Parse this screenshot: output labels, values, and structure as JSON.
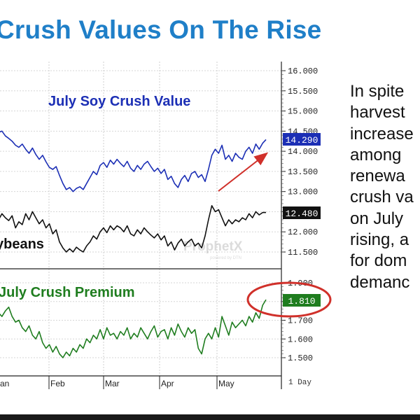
{
  "slide": {
    "title": "Crush Values On The Rise",
    "body_lines": [
      "In spite",
      "harvest",
      "increase",
      "among",
      "renewa",
      "crush va",
      "on July",
      "rising, a",
      "for dom",
      "demanc"
    ]
  },
  "chart_data": [
    {
      "type": "line",
      "panel": "upper",
      "title": "July Soy Crush Value",
      "x_ticks": [
        "an",
        "Feb",
        "Mar",
        "Apr",
        "May"
      ],
      "y_ticks": [
        "16.000",
        "15.500",
        "15.000",
        "14.500",
        "14.000",
        "13.500",
        "13.000",
        "12.500",
        "12.000",
        "11.500"
      ],
      "ylim": [
        11.3,
        16.1
      ],
      "series": [
        {
          "name": "July Soy Crush Value",
          "color": "#1c2fb5",
          "last_value": "14.290",
          "values": [
            14.47,
            14.5,
            14.38,
            14.32,
            14.25,
            14.15,
            14.1,
            14.18,
            14.05,
            13.95,
            14.08,
            13.92,
            13.8,
            13.9,
            13.74,
            13.6,
            13.55,
            13.62,
            13.4,
            13.2,
            13.05,
            13.1,
            13.0,
            13.08,
            13.12,
            13.05,
            13.2,
            13.35,
            13.5,
            13.42,
            13.65,
            13.72,
            13.6,
            13.78,
            13.68,
            13.8,
            13.7,
            13.62,
            13.75,
            13.58,
            13.5,
            13.65,
            13.55,
            13.68,
            13.75,
            13.62,
            13.5,
            13.58,
            13.45,
            13.55,
            13.3,
            13.38,
            13.2,
            13.1,
            13.3,
            13.4,
            13.25,
            13.45,
            13.5,
            13.35,
            13.42,
            13.25,
            13.55,
            13.9,
            14.05,
            13.95,
            14.15,
            13.8,
            13.9,
            13.75,
            13.95,
            13.85,
            13.8,
            14.0,
            14.1,
            13.95,
            14.18,
            14.05,
            14.2,
            14.29
          ]
        },
        {
          "name": "Soybeans",
          "label_shown": "ybeans",
          "color": "#111111",
          "last_value": "12.480",
          "values": [
            12.3,
            12.45,
            12.35,
            12.28,
            12.4,
            12.1,
            12.25,
            12.18,
            12.45,
            12.3,
            12.5,
            12.35,
            12.2,
            12.3,
            12.1,
            12.2,
            11.95,
            12.05,
            11.75,
            11.6,
            11.5,
            11.58,
            11.5,
            11.62,
            11.55,
            11.5,
            11.65,
            11.75,
            11.9,
            11.82,
            12.0,
            12.1,
            11.98,
            12.15,
            12.05,
            12.15,
            12.1,
            12.0,
            12.15,
            11.95,
            11.9,
            12.05,
            11.95,
            12.1,
            12.0,
            11.92,
            11.85,
            11.95,
            11.8,
            11.9,
            11.65,
            11.75,
            11.55,
            11.72,
            11.82,
            11.65,
            11.75,
            11.82,
            11.65,
            11.72,
            11.6,
            11.9,
            12.3,
            12.65,
            12.5,
            12.55,
            12.35,
            12.15,
            12.3,
            12.2,
            12.3,
            12.25,
            12.35,
            12.3,
            12.45,
            12.35,
            12.5,
            12.42,
            12.48,
            12.48
          ]
        }
      ],
      "annotations": [
        "trend arrow (red)"
      ]
    },
    {
      "type": "line",
      "panel": "lower",
      "title": "July Crush Premium",
      "x_ticks": [
        "an",
        "Feb",
        "Mar",
        "Apr",
        "May"
      ],
      "y_ticks": [
        "1.900",
        "1.800",
        "1.700",
        "1.600",
        "1.500"
      ],
      "ylim": [
        1.43,
        1.93
      ],
      "series": [
        {
          "name": "July Crush Premium",
          "color": "#1f7d1f",
          "last_value": "1.810",
          "values": [
            1.74,
            1.72,
            1.75,
            1.77,
            1.72,
            1.69,
            1.7,
            1.66,
            1.64,
            1.67,
            1.62,
            1.6,
            1.64,
            1.58,
            1.55,
            1.57,
            1.53,
            1.56,
            1.52,
            1.5,
            1.53,
            1.51,
            1.55,
            1.53,
            1.57,
            1.55,
            1.6,
            1.58,
            1.62,
            1.6,
            1.65,
            1.6,
            1.66,
            1.62,
            1.63,
            1.6,
            1.64,
            1.62,
            1.66,
            1.6,
            1.63,
            1.61,
            1.66,
            1.63,
            1.6,
            1.64,
            1.67,
            1.61,
            1.64,
            1.65,
            1.6,
            1.66,
            1.62,
            1.68,
            1.64,
            1.61,
            1.66,
            1.63,
            1.65,
            1.55,
            1.52,
            1.6,
            1.63,
            1.6,
            1.66,
            1.61,
            1.72,
            1.67,
            1.62,
            1.69,
            1.66,
            1.68,
            1.7,
            1.67,
            1.72,
            1.69,
            1.74,
            1.71,
            1.78,
            1.81
          ]
        }
      ]
    }
  ],
  "x_axis_footer": "1 Day",
  "watermark": {
    "brand": "ProphetX",
    "sub": "powered by DTN"
  }
}
